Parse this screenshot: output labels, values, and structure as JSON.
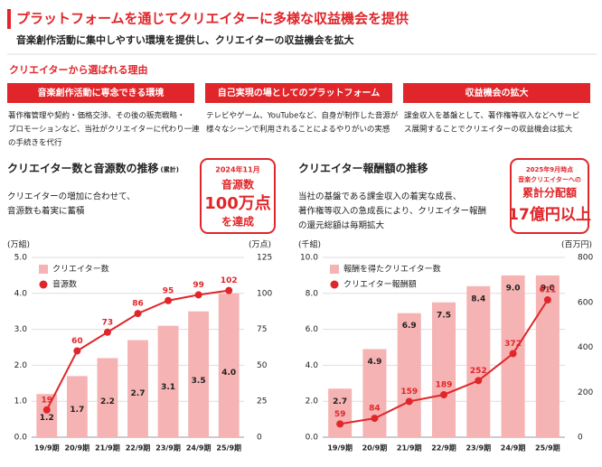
{
  "header": {
    "title": "プラットフォームを通じてクリエイターに多様な収益機会を提供",
    "subtitle": "音楽創作活動に集中しやすい環境を提供し、クリエイターの収益機会を拡大"
  },
  "section_title": "クリエイターから選ばれる理由",
  "reasons": [
    {
      "heading": "音楽創作活動に専念できる環境",
      "body": [
        "著作権管理や契約・価格交渉、その後の販売戦略・",
        "プロモーションなど、当社がクリエイターに代わり一連",
        "の手続きを代行"
      ]
    },
    {
      "heading": "自己実現の場としてのプラットフォーム",
      "body": [
        "テレビやゲーム、YouTubeなど、自身が制作した音源が",
        "様々なシーンで利用されることによるやりがいの実感"
      ]
    },
    {
      "heading": "収益機会の拡大",
      "body": [
        "課金収入を基盤として、著作権等収入などへサービ",
        "ス展開することでクリエイターの収益機会は拡大"
      ]
    }
  ],
  "chart_data": [
    {
      "type": "combo",
      "title": "クリエイター数と音源数の推移",
      "title_note": "(累計)",
      "description": [
        "クリエイターの増加に合わせて、",
        "音源数も着実に蓄積"
      ],
      "callout": [
        "2024年11月",
        "音源数",
        "100万点",
        "を達成"
      ],
      "y_unit": "(万組)",
      "y2_unit": "(万点)",
      "categories": [
        "19/9期",
        "20/9期",
        "21/9期",
        "22/9期",
        "23/9期",
        "24/9期",
        "25/9期"
      ],
      "ylim": [
        0,
        5
      ],
      "yticks": [
        {
          "value": 0,
          "label": "0.0"
        },
        {
          "value": 1,
          "label": "1.0"
        },
        {
          "value": 2,
          "label": "2.0"
        },
        {
          "value": 3,
          "label": "3.0"
        },
        {
          "value": 4,
          "label": "4.0"
        },
        {
          "value": 5,
          "label": "5.0"
        }
      ],
      "y2lim": [
        0,
        125
      ],
      "y2ticks": [
        0,
        25,
        50,
        75,
        100,
        125
      ],
      "grid": true,
      "series": [
        {
          "name": "クリエイター数",
          "type": "bar",
          "color": "#f6b3b3",
          "values": [
            1.2,
            1.7,
            2.2,
            2.7,
            3.1,
            3.5,
            4.0
          ],
          "value_labels": [
            "1.2",
            "1.7",
            "2.2",
            "2.7",
            "3.1",
            "3.5",
            "4.0"
          ]
        },
        {
          "name": "音源数",
          "type": "line",
          "axis": "y2",
          "color": "#e0262a",
          "values": [
            19,
            60,
            73,
            86,
            95,
            99,
            102
          ]
        }
      ]
    },
    {
      "type": "combo",
      "title": "クリエイター報酬額の推移",
      "description": [
        "当社の基盤である課金収入の着実な成長、",
        "著作権等収入の急成長により、クリエイター報酬",
        "の還元総額は毎期拡大"
      ],
      "callout": [
        "2025年9月時点",
        "音楽クリエイターへの",
        "累計分配額",
        "17億円以上"
      ],
      "y_unit": "(千組)",
      "y2_unit": "(百万円)",
      "categories": [
        "19/9期",
        "20/9期",
        "21/9期",
        "22/9期",
        "23/9期",
        "24/9期",
        "25/9期"
      ],
      "ylim": [
        0,
        10
      ],
      "yticks": [
        {
          "value": 0,
          "label": "0.0"
        },
        {
          "value": 2,
          "label": "2.0"
        },
        {
          "value": 4,
          "label": "4.0"
        },
        {
          "value": 6,
          "label": "6.0"
        },
        {
          "value": 8,
          "label": "8.0"
        },
        {
          "value": 10,
          "label": "10.0"
        }
      ],
      "y2lim": [
        0,
        800
      ],
      "y2ticks": [
        0,
        200,
        400,
        600,
        800
      ],
      "grid": true,
      "series": [
        {
          "name": "報酬を得たクリエイター数",
          "type": "bar",
          "color": "#f6b3b3",
          "values": [
            2.7,
            4.9,
            6.9,
            7.5,
            8.4,
            9.0,
            9.0
          ],
          "value_labels": [
            "2.7",
            "4.9",
            "6.9",
            "7.5",
            "8.4",
            "9.0",
            "9.0"
          ]
        },
        {
          "name": "クリエイター報酬額",
          "type": "line",
          "axis": "y2",
          "color": "#e0262a",
          "values": [
            59,
            84,
            159,
            189,
            252,
            372,
            611
          ]
        }
      ]
    }
  ]
}
